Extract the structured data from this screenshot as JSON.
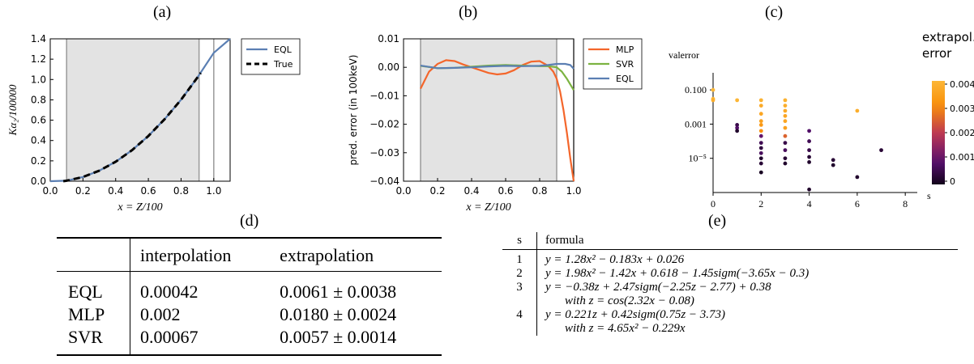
{
  "labels": {
    "a": "(a)",
    "b": "(b)",
    "c": "(c)",
    "d": "(d)",
    "e": "(e)"
  },
  "chart_data": [
    {
      "id": "a",
      "type": "line",
      "xlabel": "x = Z/100",
      "ylabel": "Kα₂/100000",
      "xlim": [
        0.0,
        1.1
      ],
      "ylim": [
        0.0,
        1.4
      ],
      "xticks": [
        "0.0",
        "0.2",
        "0.4",
        "0.6",
        "0.8",
        "1.0"
      ],
      "yticks": [
        "0.0",
        "0.2",
        "0.4",
        "0.6",
        "0.8",
        "1.0",
        "1.2",
        "1.4"
      ],
      "shaded_region": [
        0.1,
        0.91
      ],
      "vertical_lines": [
        0.1,
        0.91,
        1.0
      ],
      "legend_position": "outside-right",
      "series": [
        {
          "name": "EQL",
          "color": "#5b7fb3",
          "dash": "solid",
          "x": [
            0.0,
            0.1,
            0.2,
            0.3,
            0.4,
            0.5,
            0.6,
            0.7,
            0.8,
            0.9,
            1.0,
            1.1
          ],
          "y": [
            0.0,
            0.0048,
            0.0412,
            0.1034,
            0.1912,
            0.305,
            0.445,
            0.611,
            0.802,
            1.019,
            1.262,
            1.4
          ]
        },
        {
          "name": "True",
          "color": "#000000",
          "dash": "dashed",
          "x": [
            0.08,
            0.1,
            0.2,
            0.3,
            0.4,
            0.5,
            0.6,
            0.7,
            0.8,
            0.9,
            0.92
          ],
          "y": [
            0.0,
            0.0048,
            0.0412,
            0.1034,
            0.1912,
            0.305,
            0.445,
            0.611,
            0.802,
            1.019,
            1.065
          ]
        }
      ]
    },
    {
      "id": "b",
      "type": "line",
      "xlabel": "x = Z/100",
      "ylabel": "pred. error (in 100keV)",
      "xlim": [
        0.0,
        1.0
      ],
      "ylim": [
        -0.04,
        0.01
      ],
      "xticks": [
        "0.0",
        "0.2",
        "0.4",
        "0.6",
        "0.8",
        "1.0"
      ],
      "yticks": [
        "0.01",
        "0.00",
        "−0.01",
        "−0.02",
        "−0.03",
        "−0.04"
      ],
      "shaded_region": [
        0.1,
        0.9
      ],
      "vertical_lines": [
        0.1,
        0.9,
        1.0
      ],
      "legend_position": "outside-right",
      "series": [
        {
          "name": "MLP",
          "color": "#f4662b",
          "x": [
            0.1,
            0.15,
            0.2,
            0.25,
            0.3,
            0.35,
            0.4,
            0.45,
            0.5,
            0.55,
            0.6,
            0.65,
            0.7,
            0.75,
            0.8,
            0.85,
            0.88,
            0.9,
            0.92,
            0.94,
            0.96,
            0.98,
            1.0
          ],
          "y": [
            -0.0075,
            -0.0015,
            0.0012,
            0.0025,
            0.0022,
            0.001,
            0.0,
            -0.001,
            -0.002,
            -0.0025,
            -0.0022,
            -0.001,
            0.0008,
            0.002,
            0.0022,
            0.0005,
            -0.0015,
            -0.004,
            -0.0085,
            -0.015,
            -0.023,
            -0.032,
            -0.04
          ]
        },
        {
          "name": "SVR",
          "color": "#7cb341",
          "x": [
            0.1,
            0.2,
            0.3,
            0.4,
            0.5,
            0.6,
            0.7,
            0.8,
            0.85,
            0.9,
            0.93,
            0.96,
            1.0
          ],
          "y": [
            0.0005,
            -0.0003,
            -0.0002,
            0.0002,
            0.0006,
            0.0008,
            0.0006,
            0.0004,
            0.0004,
            0.0,
            -0.0015,
            -0.004,
            -0.008
          ]
        },
        {
          "name": "EQL",
          "color": "#5b7fb3",
          "x": [
            0.1,
            0.2,
            0.3,
            0.4,
            0.5,
            0.6,
            0.7,
            0.8,
            0.85,
            0.9,
            0.95,
            0.98,
            1.0
          ],
          "y": [
            0.0006,
            -0.0003,
            -0.0002,
            0.0,
            0.0003,
            0.0005,
            0.0004,
            0.0005,
            0.0008,
            0.0012,
            0.0012,
            0.0008,
            -0.0005
          ]
        }
      ]
    },
    {
      "id": "c",
      "type": "scatter",
      "xlabel": "s",
      "ylabel": "valerror",
      "xlim": [
        0,
        8.5
      ],
      "ylog": true,
      "ylim": [
        1e-07,
        1
      ],
      "xticks": [
        "0",
        "2",
        "4",
        "6",
        "8"
      ],
      "yticks": [
        "0.100",
        "0.001",
        "10⁻⁵"
      ],
      "colorbar": {
        "title": [
          "extrapol.",
          "error"
        ],
        "ticks": [
          "0.004",
          "0.003",
          "0.002",
          "0.001",
          "0"
        ],
        "range": [
          0,
          0.004
        ]
      },
      "points": [
        {
          "s": 0,
          "v": 0.1,
          "e": 0.004
        },
        {
          "s": 0,
          "v": 0.03,
          "e": 0.004
        },
        {
          "s": 0,
          "v": 0.025,
          "e": 0.0038
        },
        {
          "s": 1,
          "v": 0.025,
          "e": 0.004
        },
        {
          "s": 1,
          "v": 0.0009,
          "e": 0.0005
        },
        {
          "s": 1,
          "v": 0.0006,
          "e": 0.0008
        },
        {
          "s": 1,
          "v": 0.0004,
          "e": 0.0002
        },
        {
          "s": 2,
          "v": 0.025,
          "e": 0.0039
        },
        {
          "s": 2,
          "v": 0.012,
          "e": 0.0037
        },
        {
          "s": 2,
          "v": 0.004,
          "e": 0.0036
        },
        {
          "s": 2,
          "v": 0.0015,
          "e": 0.0035
        },
        {
          "s": 2,
          "v": 0.0009,
          "e": 0.0033
        },
        {
          "s": 2,
          "v": 0.0004,
          "e": 0.0031
        },
        {
          "s": 2,
          "v": 0.0002,
          "e": 0.001
        },
        {
          "s": 2,
          "v": 8e-05,
          "e": 0.0006
        },
        {
          "s": 2,
          "v": 4e-05,
          "e": 0.0004
        },
        {
          "s": 2,
          "v": 2e-05,
          "e": 0.0007
        },
        {
          "s": 2,
          "v": 1e-05,
          "e": 0.0002
        },
        {
          "s": 2,
          "v": 5e-06,
          "e": 0.0003
        },
        {
          "s": 2,
          "v": 1.5e-06,
          "e": 0.0001
        },
        {
          "s": 3,
          "v": 0.025,
          "e": 0.0039
        },
        {
          "s": 3,
          "v": 0.012,
          "e": 0.0038
        },
        {
          "s": 3,
          "v": 0.006,
          "e": 0.0037
        },
        {
          "s": 3,
          "v": 0.003,
          "e": 0.0036
        },
        {
          "s": 3,
          "v": 0.0015,
          "e": 0.0036
        },
        {
          "s": 3,
          "v": 0.0006,
          "e": 0.0035
        },
        {
          "s": 3,
          "v": 0.0002,
          "e": 0.0025
        },
        {
          "s": 3,
          "v": 8e-05,
          "e": 0.0005
        },
        {
          "s": 3,
          "v": 3e-05,
          "e": 0.0007
        },
        {
          "s": 3,
          "v": 1e-05,
          "e": 0.0003
        },
        {
          "s": 3,
          "v": 5e-06,
          "e": 0.0002
        },
        {
          "s": 4,
          "v": 0.0004,
          "e": 0.0008
        },
        {
          "s": 4,
          "v": 0.0001,
          "e": 0.0006
        },
        {
          "s": 4,
          "v": 3e-05,
          "e": 0.0005
        },
        {
          "s": 4,
          "v": 1.2e-05,
          "e": 0.0003
        },
        {
          "s": 4,
          "v": 6e-06,
          "e": 0.0002
        },
        {
          "s": 4,
          "v": 1.5e-07,
          "e": 0.0002
        },
        {
          "s": 5,
          "v": 8e-06,
          "e": 0.0003
        },
        {
          "s": 5,
          "v": 4e-06,
          "e": 0.0002
        },
        {
          "s": 6,
          "v": 0.006,
          "e": 0.0038
        },
        {
          "s": 6,
          "v": 8e-07,
          "e": 0.0002
        },
        {
          "s": 7,
          "v": 3e-05,
          "e": 0.0003
        }
      ]
    }
  ],
  "table_d": {
    "headers": [
      "",
      "interpolation",
      "extrapolation"
    ],
    "rows": [
      [
        "EQL",
        "0.00042",
        "0.0061 ± 0.0038"
      ],
      [
        "MLP",
        "0.002",
        "0.0180 ± 0.0024"
      ],
      [
        "SVR",
        "0.00067",
        "0.0057 ± 0.0014"
      ]
    ]
  },
  "table_e": {
    "headers": [
      "s",
      "formula"
    ],
    "rows": [
      {
        "s": "1",
        "lines": [
          "y = 1.28x² − 0.183x + 0.026"
        ]
      },
      {
        "s": "2",
        "lines": [
          "y = 1.98x² − 1.42x + 0.618 − 1.45sigm(−3.65x − 0.3)"
        ]
      },
      {
        "s": "3",
        "lines": [
          "y = −0.38z + 2.47sigm(−2.25z − 2.77) + 0.38",
          "with    z = cos(2.32x − 0.08)"
        ]
      },
      {
        "s": "4",
        "lines": [
          "y = 0.221z + 0.42sigm(0.75z − 3.73)",
          "with    z = 4.65x² − 0.229x"
        ]
      }
    ]
  }
}
